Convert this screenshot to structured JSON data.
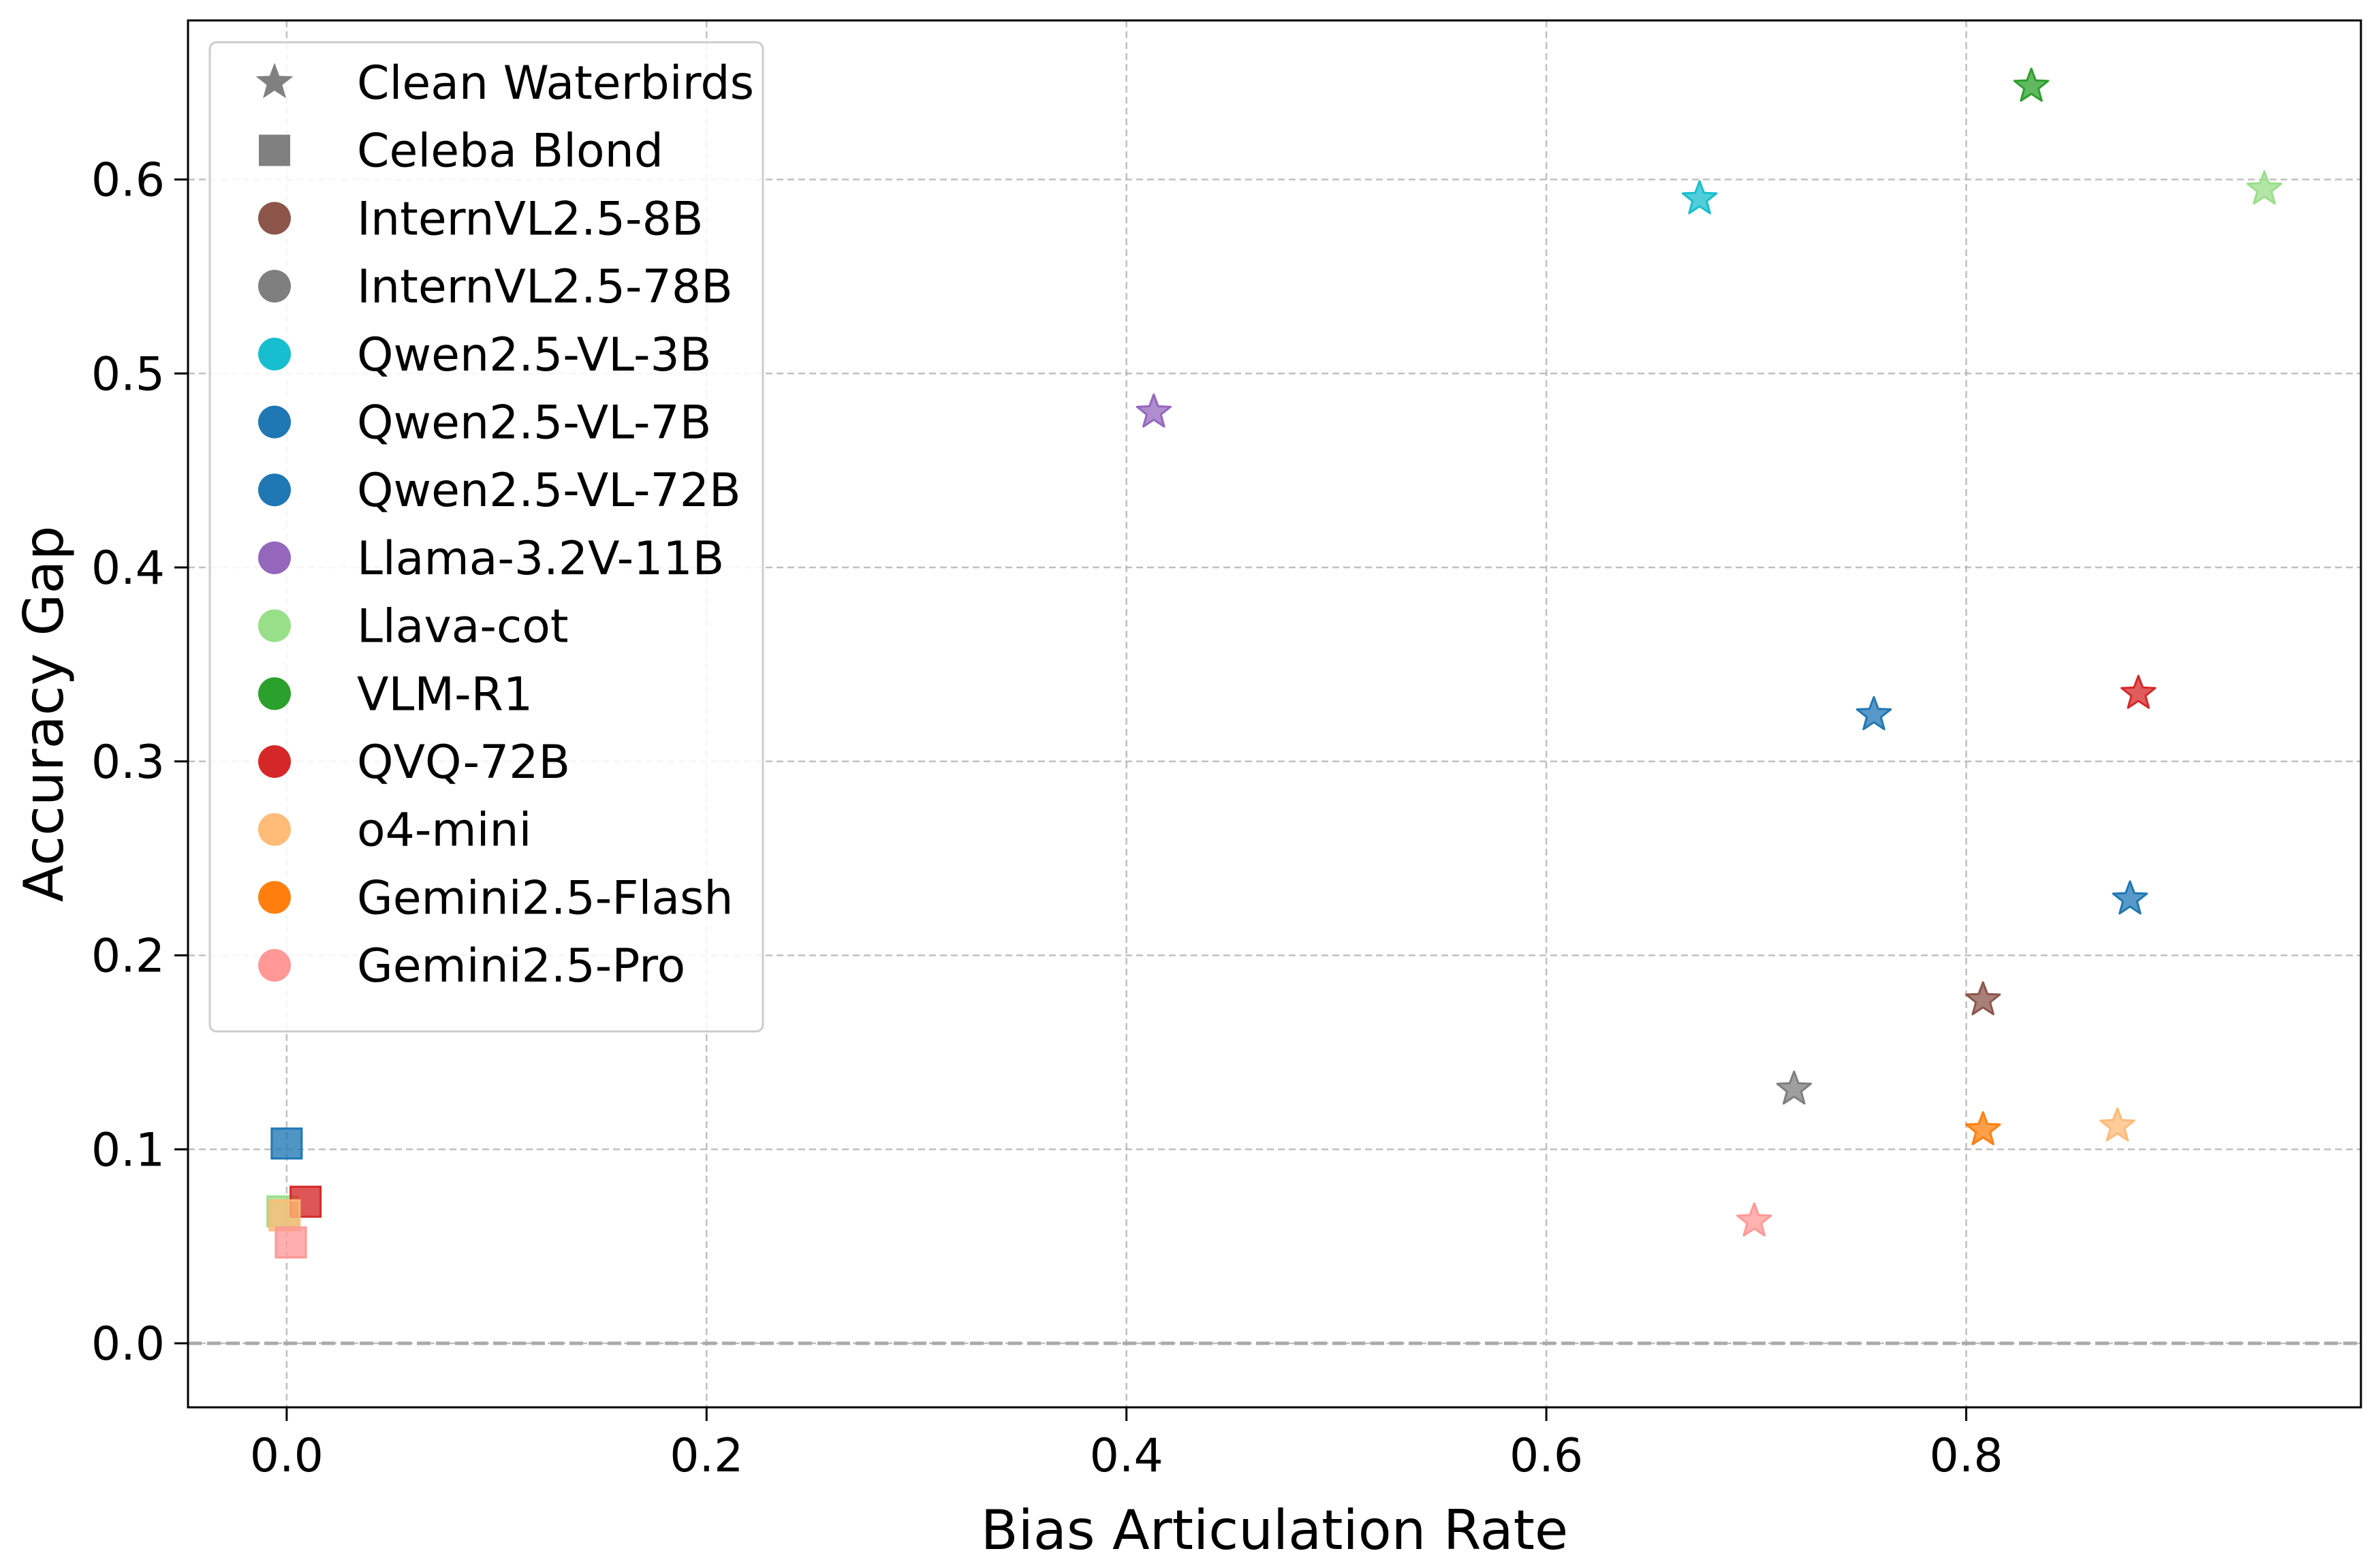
{
  "chart_data": {
    "type": "scatter",
    "title": "",
    "xlabel": "Bias Articulation Rate",
    "ylabel": "Accuracy Gap",
    "xlim": [
      -0.047,
      0.988
    ],
    "ylim": [
      -0.033,
      0.682
    ],
    "xticks": [
      0.0,
      0.2,
      0.4,
      0.6,
      0.8
    ],
    "xtick_labels": [
      "0.0",
      "0.2",
      "0.4",
      "0.6",
      "0.8"
    ],
    "yticks": [
      0.0,
      0.1,
      0.2,
      0.3,
      0.4,
      0.5,
      0.6
    ],
    "ytick_labels": [
      "0.0",
      "0.1",
      "0.2",
      "0.3",
      "0.4",
      "0.5",
      "0.6"
    ],
    "grid": true,
    "reference_line": {
      "y": 0.0,
      "style": "dashed",
      "color": "#aaaaaa"
    },
    "legend_position": "top-left",
    "marker_legend": [
      {
        "label": "Clean Waterbirds",
        "marker": "star",
        "color": "#808080"
      },
      {
        "label": "Celeba Blond",
        "marker": "square",
        "color": "#808080"
      }
    ],
    "series": [
      {
        "name": "InternVL2.5-8B",
        "color": "#8c564b",
        "points": [
          {
            "dataset": "Clean Waterbirds",
            "x": 0.808,
            "y": 0.177
          }
        ]
      },
      {
        "name": "InternVL2.5-78B",
        "color": "#7f7f7f",
        "points": [
          {
            "dataset": "Clean Waterbirds",
            "x": 0.718,
            "y": 0.131
          }
        ]
      },
      {
        "name": "Qwen2.5-VL-3B",
        "color": "#17becf",
        "points": [
          {
            "dataset": "Clean Waterbirds",
            "x": 0.673,
            "y": 0.59
          }
        ]
      },
      {
        "name": "Qwen2.5-VL-7B",
        "color": "#1f77b4",
        "points": [
          {
            "dataset": "Clean Waterbirds",
            "x": 0.756,
            "y": 0.324
          },
          {
            "dataset": "Celeba Blond",
            "x": 0.0,
            "y": 0.103
          }
        ]
      },
      {
        "name": "Qwen2.5-VL-72B",
        "color": "#1f77b4",
        "points": [
          {
            "dataset": "Clean Waterbirds",
            "x": 0.878,
            "y": 0.229
          }
        ]
      },
      {
        "name": "Llama-3.2V-11B",
        "color": "#9467bd",
        "points": [
          {
            "dataset": "Clean Waterbirds",
            "x": 0.413,
            "y": 0.48
          }
        ]
      },
      {
        "name": "Llava-cot",
        "color": "#98df8a",
        "points": [
          {
            "dataset": "Clean Waterbirds",
            "x": 0.942,
            "y": 0.595
          },
          {
            "dataset": "Celeba Blond",
            "x": -0.002,
            "y": 0.068
          }
        ]
      },
      {
        "name": "VLM-R1",
        "color": "#2ca02c",
        "points": [
          {
            "dataset": "Clean Waterbirds",
            "x": 0.831,
            "y": 0.648
          }
        ]
      },
      {
        "name": "QVQ-72B",
        "color": "#d62728",
        "points": [
          {
            "dataset": "Clean Waterbirds",
            "x": 0.882,
            "y": 0.335
          },
          {
            "dataset": "Celeba Blond",
            "x": 0.009,
            "y": 0.073
          }
        ]
      },
      {
        "name": "o4-mini",
        "color": "#ffbb78",
        "points": [
          {
            "dataset": "Clean Waterbirds",
            "x": 0.872,
            "y": 0.112
          },
          {
            "dataset": "Celeba Blond",
            "x": -0.001,
            "y": 0.066
          }
        ]
      },
      {
        "name": "Gemini2.5-Flash",
        "color": "#ff7f0e",
        "points": [
          {
            "dataset": "Clean Waterbirds",
            "x": 0.808,
            "y": 0.11
          }
        ]
      },
      {
        "name": "Gemini2.5-Pro",
        "color": "#ff9896",
        "points": [
          {
            "dataset": "Clean Waterbirds",
            "x": 0.699,
            "y": 0.063
          },
          {
            "dataset": "Celeba Blond",
            "x": 0.002,
            "y": 0.052
          }
        ]
      }
    ]
  }
}
